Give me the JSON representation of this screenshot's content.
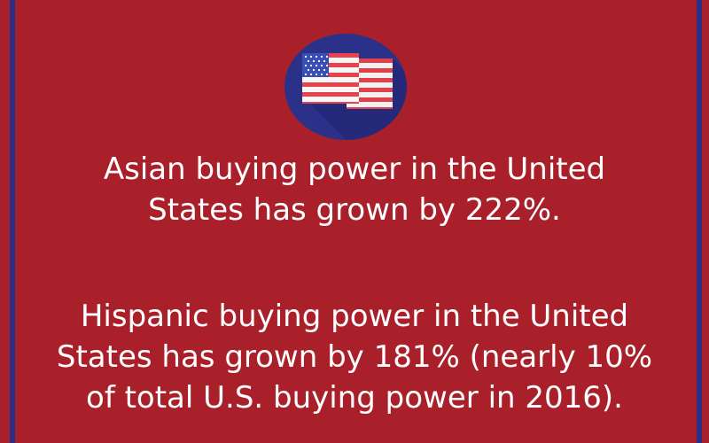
{
  "paragraphs": {
    "asian_line1": "Asian buying power in the United",
    "asian_line2": "States has grown by 222%.",
    "hispanic_line1": "Hispanic buying power in the United",
    "hispanic_line2": "States has grown by 181% (nearly 10%",
    "hispanic_line3": "of total U.S. buying power in 2016)."
  },
  "icons": {
    "badge": "us-flag-icon"
  },
  "colors": {
    "background": "#a91f2a",
    "border": "#2c2f86",
    "badge": "#2b3188",
    "text": "#ffffff"
  }
}
